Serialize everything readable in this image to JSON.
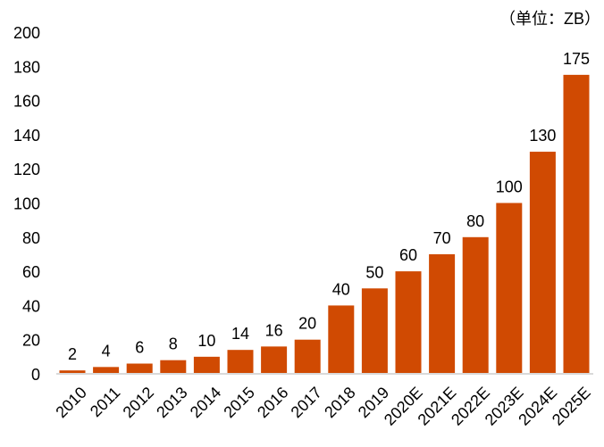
{
  "chart_data": {
    "type": "bar",
    "unit_label": "（单位：ZB）",
    "categories": [
      "2010",
      "2011",
      "2012",
      "2013",
      "2014",
      "2015",
      "2016",
      "2017",
      "2018",
      "2019",
      "2020E",
      "2021E",
      "2022E",
      "2023E",
      "2024E",
      "2025E"
    ],
    "values": [
      2,
      4,
      6,
      8,
      10,
      14,
      16,
      20,
      40,
      50,
      60,
      70,
      80,
      100,
      130,
      175
    ],
    "ylim": [
      0,
      200
    ],
    "yticks": [
      0,
      20,
      40,
      60,
      80,
      100,
      120,
      140,
      160,
      180,
      200
    ],
    "grid": false,
    "bar_color": "#D04A02",
    "axis_color": "#D9D9D9"
  }
}
